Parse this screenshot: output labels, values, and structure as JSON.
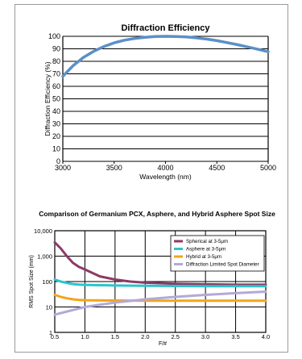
{
  "chart_data": [
    {
      "type": "line",
      "title": "Diffraction Efficiency",
      "xlabel": "Wavelength (nm)",
      "ylabel": "Diffraction Efficiency (%)",
      "xlim": [
        3000,
        5000
      ],
      "ylim": [
        0,
        100
      ],
      "xticks": [
        "3000",
        "3500",
        "4000",
        "4500",
        "5000"
      ],
      "yticks": [
        "0",
        "10",
        "20",
        "30",
        "40",
        "50",
        "60",
        "70",
        "80",
        "90",
        "100"
      ],
      "grid": "horizontal",
      "series": [
        {
          "color": "#5b8fc7",
          "x": [
            3000,
            3100,
            3200,
            3300,
            3400,
            3500,
            3600,
            3700,
            3800,
            3900,
            4000,
            4100,
            4200,
            4300,
            4400,
            4500,
            4600,
            4700,
            4800,
            4900,
            5000
          ],
          "y": [
            68,
            76.5,
            83,
            88,
            91.8,
            94.8,
            96.9,
            98.3,
            99.2,
            99.8,
            100,
            99.9,
            99.5,
            98.8,
            97.8,
            96.5,
            95,
            93.3,
            91.5,
            89.6,
            87.6
          ]
        }
      ]
    },
    {
      "type": "line",
      "title": "Comparison of Germanium PCX, Asphere, and Hybrid Asphere Spot Size",
      "xlabel": "F/#",
      "ylabel": "RMS Spot Size (mm)",
      "xlim": [
        0.5,
        4.0
      ],
      "ylim": [
        1,
        10000
      ],
      "yscale": "log",
      "xticks": [
        "0.5",
        "1.0",
        "1.5",
        "2.0",
        "2.5",
        "3.0",
        "3.5",
        "4.0"
      ],
      "yticks": [
        "1",
        "10",
        "100",
        "1,000",
        "10,000"
      ],
      "grid": "both",
      "legend_position": "top-right",
      "series": [
        {
          "name": "Spherical at 3-5μm",
          "color": "#8c3a66",
          "x": [
            0.5,
            0.6,
            0.7,
            0.8,
            0.9,
            1.0,
            1.25,
            1.5,
            1.75,
            2.0,
            2.5,
            3.0,
            3.5,
            4.0
          ],
          "y": [
            3500,
            2000,
            1000,
            550,
            380,
            300,
            160,
            120,
            100,
            90,
            82,
            78,
            75,
            75
          ]
        },
        {
          "name": "Asphere at 3-5μm",
          "color": "#2cc4cc",
          "x": [
            0.5,
            0.6,
            0.7,
            0.8,
            0.9,
            1.0,
            1.5,
            2.0,
            2.5,
            3.0,
            3.5,
            4.0
          ],
          "y": [
            120,
            100,
            88,
            80,
            76,
            74,
            70,
            68,
            67,
            66,
            66,
            66
          ]
        },
        {
          "name": "Hybrid at 3-5μm",
          "color": "#f2a51c",
          "x": [
            0.5,
            0.6,
            0.7,
            0.8,
            0.9,
            1.0,
            1.5,
            2.0,
            2.5,
            3.0,
            3.5,
            4.0
          ],
          "y": [
            30,
            25,
            22,
            20,
            19,
            18.5,
            18,
            17.5,
            17.5,
            17.5,
            17.5,
            17.5
          ]
        },
        {
          "name": "Diffraction Limited Spot Diameter",
          "color": "#b3a9d8",
          "x": [
            0.5,
            1.0,
            1.5,
            2.0,
            2.5,
            3.0,
            3.5,
            4.0
          ],
          "y": [
            5,
            10,
            15,
            20,
            25,
            30,
            35,
            40
          ]
        }
      ]
    }
  ]
}
